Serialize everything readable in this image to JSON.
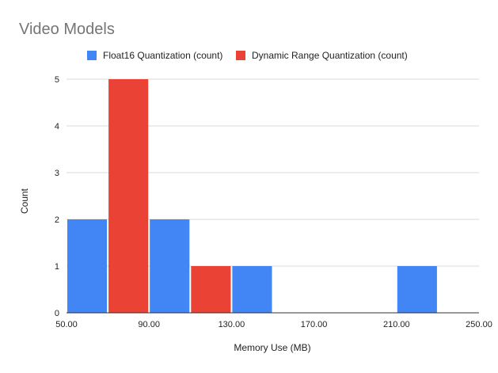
{
  "chart_data": {
    "type": "bar",
    "title": "Video Models",
    "xlabel": "Memory Use (MB)",
    "ylabel": "Count",
    "x_ticks": [
      "50.00",
      "90.00",
      "130.00",
      "170.00",
      "210.00",
      "250.00"
    ],
    "xlim": [
      50,
      250
    ],
    "y_ticks": [
      "0",
      "1",
      "2",
      "3",
      "4",
      "5"
    ],
    "ylim": [
      0,
      5
    ],
    "grid": true,
    "legend_position": "top",
    "bin_width": 40,
    "bins": [
      {
        "start": 50,
        "end": 90
      },
      {
        "start": 90,
        "end": 130
      },
      {
        "start": 130,
        "end": 170
      },
      {
        "start": 170,
        "end": 210
      },
      {
        "start": 210,
        "end": 250
      }
    ],
    "series": [
      {
        "name": "Float16 Quantization (count)",
        "color": "#4285f4",
        "values": [
          2,
          2,
          1,
          0,
          1
        ]
      },
      {
        "name": "Dynamic Range Quantization (count)",
        "color": "#ea4335",
        "values": [
          5,
          1,
          0,
          0,
          0
        ]
      }
    ]
  }
}
